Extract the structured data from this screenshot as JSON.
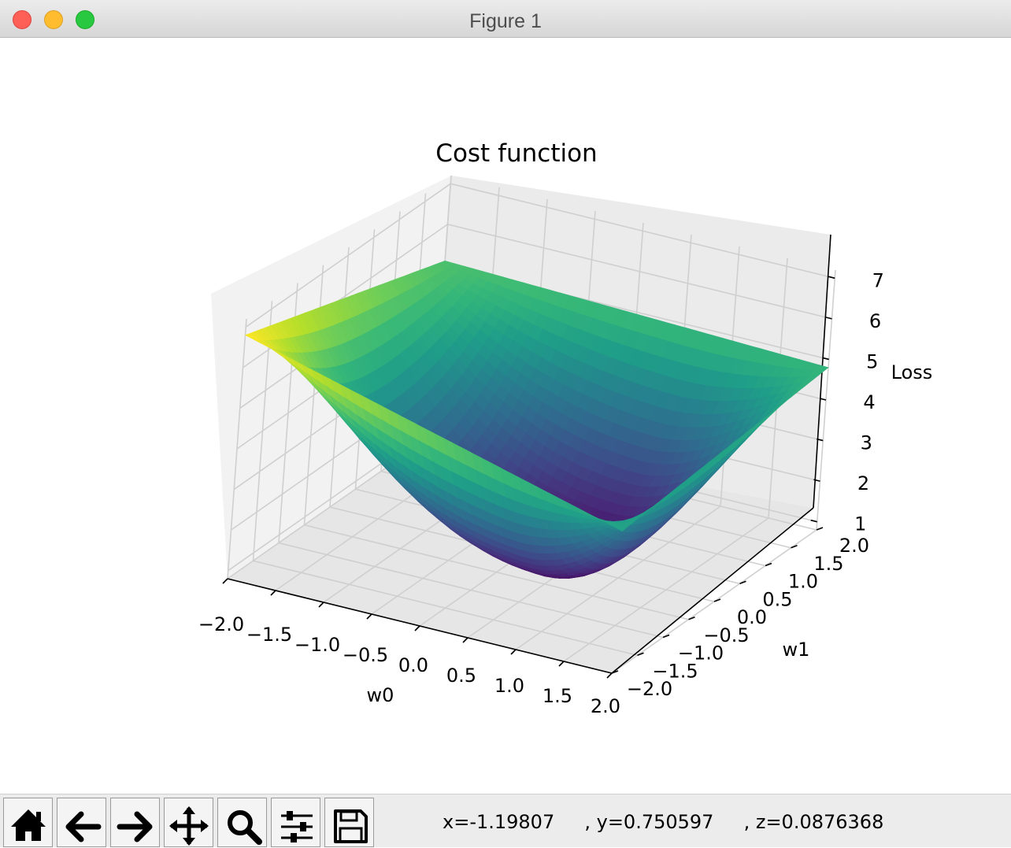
{
  "window": {
    "title": "Figure 1"
  },
  "toolbar": {
    "buttons": [
      {
        "name": "home-button",
        "icon": "home-icon"
      },
      {
        "name": "back-button",
        "icon": "arrow-left-icon"
      },
      {
        "name": "forward-button",
        "icon": "arrow-right-icon"
      },
      {
        "name": "pan-button",
        "icon": "move-icon"
      },
      {
        "name": "zoom-button",
        "icon": "magnifier-icon"
      },
      {
        "name": "configure-subplots-button",
        "icon": "sliders-icon"
      },
      {
        "name": "save-button",
        "icon": "floppy-disk-icon"
      }
    ],
    "coords": "x=-1.19807     , y=0.750597     , z=0.0876368"
  },
  "chart_data": {
    "type": "surface3d",
    "title": "Cost function",
    "xlabel": "w0",
    "ylabel": "w1",
    "zlabel": "Loss",
    "xlim": [
      -2.0,
      2.0
    ],
    "ylim": [
      -2.0,
      2.0
    ],
    "zlim": [
      0.8,
      7.2
    ],
    "xticks": [
      "−2.0",
      "−1.5",
      "−1.0",
      "−0.5",
      "0.0",
      "0.5",
      "1.0",
      "1.5",
      "2.0"
    ],
    "yticks": [
      "−2.0",
      "−1.5",
      "−1.0",
      "−0.5",
      "0.0",
      "0.5",
      "1.0",
      "1.5",
      "2.0"
    ],
    "zticks": [
      "1",
      "2",
      "3",
      "4",
      "5",
      "6",
      "7"
    ],
    "colormap": "viridis",
    "surface_corners": [
      {
        "w0": -2.0,
        "w1": -2.0,
        "loss": 6.8
      },
      {
        "w0": -2.0,
        "w1": 2.0,
        "loss": 5.1
      },
      {
        "w0": 2.0,
        "w1": 2.0,
        "loss": 4.8
      },
      {
        "w0": 2.0,
        "w1": -2.0,
        "loss": 4.3
      }
    ],
    "surface_minimum": {
      "w0": 0.6,
      "w1": -0.3,
      "loss": 1.0
    },
    "grid": true
  }
}
